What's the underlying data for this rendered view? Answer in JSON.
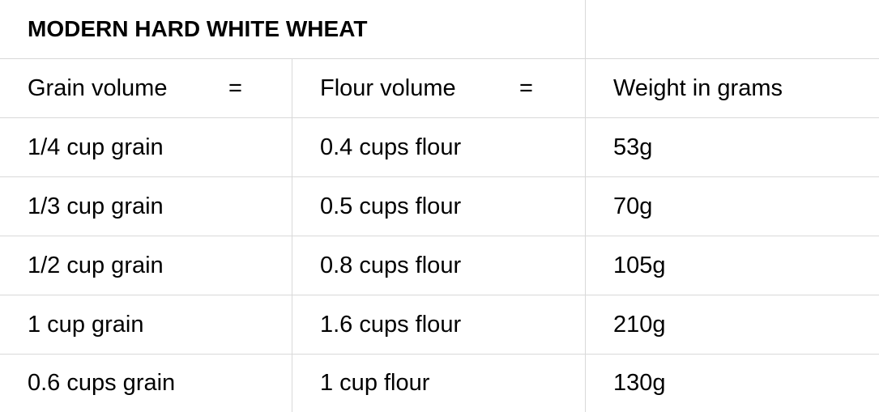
{
  "title": "MODERN HARD WHITE WHEAT",
  "headers": {
    "grain": "Grain volume",
    "flour": "Flour volume",
    "weight": "Weight in grams",
    "equals": "="
  },
  "rows": [
    {
      "grain": "1/4 cup grain",
      "flour": "0.4 cups flour",
      "weight": "53g"
    },
    {
      "grain": "1/3 cup grain",
      "flour": "0.5 cups flour",
      "weight": "70g"
    },
    {
      "grain": "1/2 cup grain",
      "flour": "0.8 cups flour",
      "weight": "105g"
    },
    {
      "grain": "1 cup grain",
      "flour": "1.6 cups flour",
      "weight": "210g"
    },
    {
      "grain": "0.6 cups grain",
      "flour": "1 cup flour",
      "weight": "130g"
    }
  ]
}
